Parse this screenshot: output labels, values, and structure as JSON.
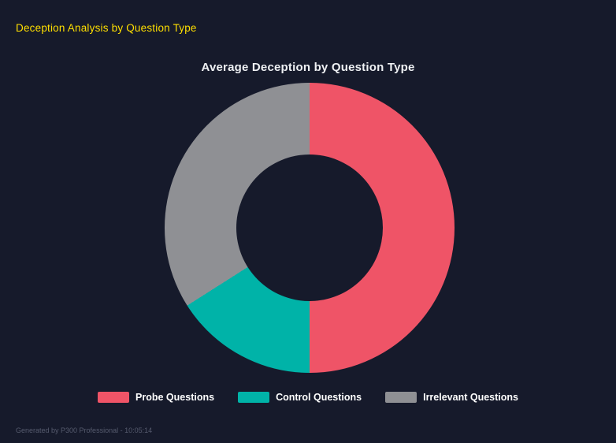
{
  "page": {
    "header": "Deception Analysis by Question Type",
    "footer": "Generated by P300 Professional - 10:05:14"
  },
  "chart_data": {
    "type": "pie",
    "subtype": "donut",
    "title": "Average Deception by Question Type",
    "categories": [
      "Probe Questions",
      "Control Questions",
      "Irrelevant Questions"
    ],
    "values": [
      50,
      16,
      34
    ],
    "unit": "percent-of-circle (estimated from arc angles)",
    "colors": [
      "#ef5467",
      "#00b3a8",
      "#8f9094"
    ],
    "legend_position": "bottom",
    "donut_hole_ratio": 0.5,
    "start_angle": "top",
    "direction": "clockwise",
    "background": "#161a2b"
  }
}
